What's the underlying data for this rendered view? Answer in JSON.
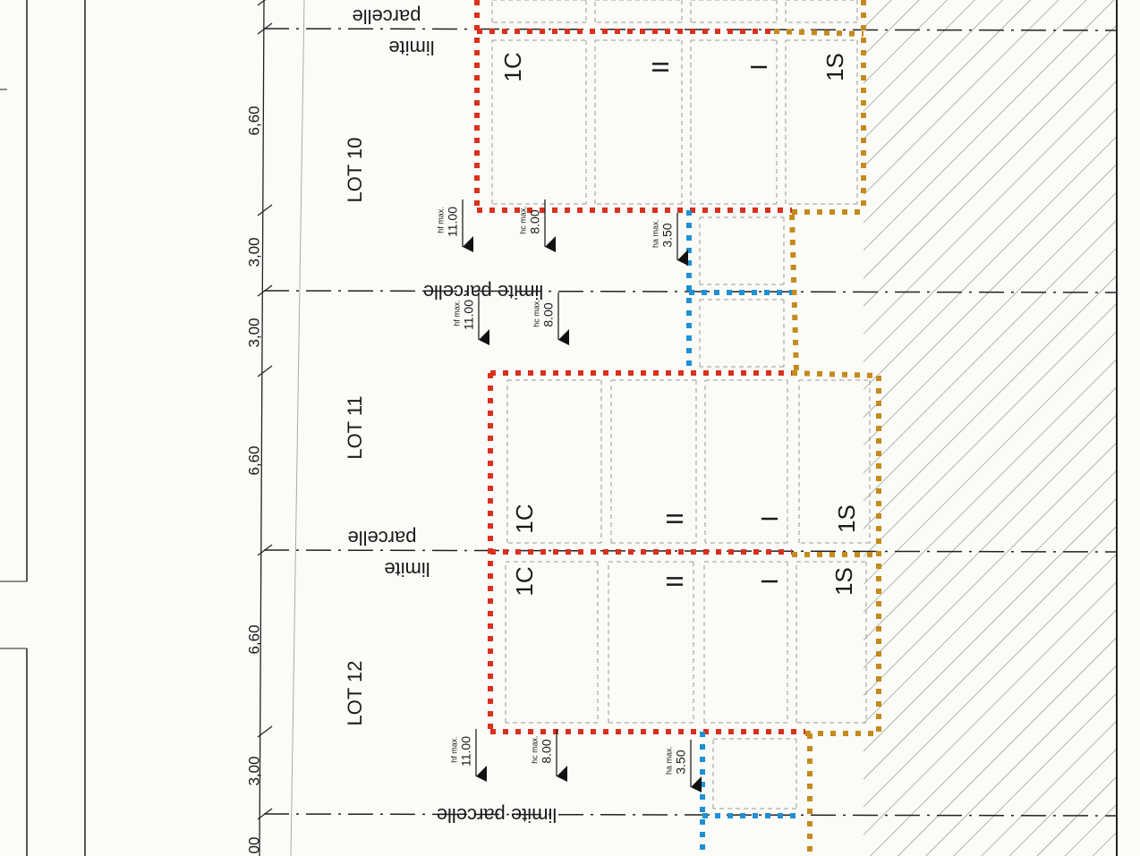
{
  "lots": [
    "LOT 10",
    "LOT 11",
    "LOT 12"
  ],
  "dimensions": [
    "6,60",
    "3,00",
    "3,00",
    "6,60",
    "6,60",
    "3,00",
    "00"
  ],
  "limits": [
    {
      "line1": "limite",
      "line2": "parcelle"
    },
    {
      "line1": "limite parcelle"
    },
    {
      "line1": "limite",
      "line2": "parcelle"
    },
    {
      "line1": "limite parcelle"
    }
  ],
  "height_markers": [
    {
      "label": "hf max.",
      "value": "11.00"
    },
    {
      "label": "hc max.",
      "value": "8.00"
    },
    {
      "label": "ha max.",
      "value": "3.50"
    },
    {
      "label": "hf max.",
      "value": "11.00"
    },
    {
      "label": "hc max.",
      "value": "8.00"
    },
    {
      "label": "hf max.",
      "value": "11.00"
    },
    {
      "label": "hc max.",
      "value": "8.00"
    },
    {
      "label": "ha max.",
      "value": "3.50"
    }
  ],
  "blocks": [
    {
      "rooms": [
        "1C",
        "II",
        "I",
        "1S"
      ]
    },
    {
      "rooms": [
        "1C",
        "II",
        "I",
        "1S"
      ]
    },
    {
      "rooms": [
        "1C",
        "II",
        "I",
        "1S"
      ]
    }
  ]
}
